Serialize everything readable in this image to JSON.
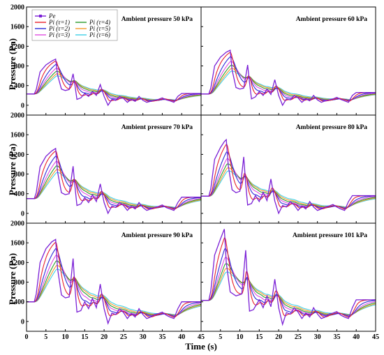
{
  "chart_data": {
    "type": "line",
    "xlabel": "Time (s)",
    "ylabel": "Pressure (Pa)",
    "xlim": [
      0,
      45
    ],
    "ylim": [
      -200,
      2000
    ],
    "xticks": [
      "0",
      "5",
      "10",
      "15",
      "20",
      "25",
      "30",
      "35",
      "40",
      "45"
    ],
    "yticks": [
      "0",
      "400",
      "800",
      "1200",
      "1600",
      "2000"
    ],
    "grid": false,
    "legend": {
      "placement": "top-left of first panel",
      "entries": [
        {
          "label": "Pe",
          "color": "#7a1fd6",
          "marker": "square"
        },
        {
          "label": "Pi (τ=1)",
          "color": "#e8202a",
          "marker": "none"
        },
        {
          "label": "Pi (τ=2)",
          "color": "#2a2ad8",
          "marker": "none"
        },
        {
          "label": "Pi (τ=3)",
          "color": "#e04de0",
          "marker": "none"
        },
        {
          "label": "Pi (τ=4)",
          "color": "#2a9a2a",
          "marker": "none"
        },
        {
          "label": "Pi (τ=5)",
          "color": "#f59a2b",
          "marker": "none"
        },
        {
          "label": "Pi (τ=6)",
          "color": "#3fd0e6",
          "marker": "none"
        }
      ]
    },
    "panels": [
      {
        "title": "Ambient pressure 50 kPa",
        "peak_pressure": 940,
        "peak_time": 7.5,
        "baseline": 230,
        "pe_points": [
          [
            0,
            230
          ],
          [
            2,
            230
          ],
          [
            2.5,
            320
          ],
          [
            3.5,
            680
          ],
          [
            5,
            820
          ],
          [
            6.5,
            900
          ],
          [
            7.5,
            940
          ],
          [
            8,
            620
          ],
          [
            9,
            330
          ],
          [
            10,
            300
          ],
          [
            11,
            320
          ],
          [
            12,
            640
          ],
          [
            12.5,
            400
          ],
          [
            13,
            120
          ],
          [
            14,
            150
          ],
          [
            15,
            240
          ],
          [
            16,
            180
          ],
          [
            17,
            280
          ],
          [
            18,
            200
          ],
          [
            19,
            420
          ],
          [
            20,
            180
          ],
          [
            21,
            0
          ],
          [
            22,
            120
          ],
          [
            23,
            100
          ],
          [
            24,
            180
          ],
          [
            25,
            140
          ],
          [
            26,
            60
          ],
          [
            27,
            120
          ],
          [
            28,
            80
          ],
          [
            29,
            180
          ],
          [
            30,
            100
          ],
          [
            31,
            60
          ],
          [
            32,
            80
          ],
          [
            33,
            100
          ],
          [
            34,
            120
          ],
          [
            35,
            150
          ],
          [
            36,
            110
          ],
          [
            37,
            90
          ],
          [
            38,
            60
          ],
          [
            39,
            180
          ],
          [
            40,
            240
          ],
          [
            45,
            240
          ]
        ]
      },
      {
        "title": "Ambient pressure 60 kPa",
        "peak_pressure": 1120,
        "peak_time": 7.5,
        "baseline": 230,
        "pe_points": [
          [
            0,
            230
          ],
          [
            2,
            230
          ],
          [
            2.5,
            350
          ],
          [
            3.5,
            800
          ],
          [
            5,
            980
          ],
          [
            6.5,
            1080
          ],
          [
            7.5,
            1120
          ],
          [
            8,
            720
          ],
          [
            9,
            360
          ],
          [
            10,
            330
          ],
          [
            11,
            350
          ],
          [
            12,
            820
          ],
          [
            12.5,
            460
          ],
          [
            13,
            130
          ],
          [
            14,
            170
          ],
          [
            15,
            280
          ],
          [
            16,
            200
          ],
          [
            17,
            330
          ],
          [
            18,
            220
          ],
          [
            19,
            520
          ],
          [
            20,
            200
          ],
          [
            21,
            0
          ],
          [
            22,
            130
          ],
          [
            23,
            110
          ],
          [
            24,
            200
          ],
          [
            25,
            150
          ],
          [
            26,
            60
          ],
          [
            27,
            130
          ],
          [
            28,
            90
          ],
          [
            29,
            200
          ],
          [
            30,
            110
          ],
          [
            31,
            60
          ],
          [
            32,
            90
          ],
          [
            33,
            110
          ],
          [
            34,
            130
          ],
          [
            35,
            160
          ],
          [
            36,
            120
          ],
          [
            37,
            90
          ],
          [
            38,
            60
          ],
          [
            39,
            200
          ],
          [
            40,
            260
          ],
          [
            45,
            260
          ]
        ]
      },
      {
        "title": "Ambient pressure 70 kPa",
        "peak_pressure": 1320,
        "peak_time": 7.5,
        "baseline": 300,
        "pe_points": [
          [
            0,
            300
          ],
          [
            2,
            300
          ],
          [
            2.5,
            420
          ],
          [
            3.5,
            950
          ],
          [
            5,
            1160
          ],
          [
            6.5,
            1270
          ],
          [
            7.5,
            1320
          ],
          [
            8,
            850
          ],
          [
            9,
            420
          ],
          [
            10,
            380
          ],
          [
            11,
            400
          ],
          [
            12,
            960
          ],
          [
            12.5,
            540
          ],
          [
            13,
            160
          ],
          [
            14,
            190
          ],
          [
            15,
            320
          ],
          [
            16,
            220
          ],
          [
            17,
            380
          ],
          [
            18,
            240
          ],
          [
            19,
            600
          ],
          [
            20,
            220
          ],
          [
            21,
            0
          ],
          [
            22,
            150
          ],
          [
            23,
            120
          ],
          [
            24,
            220
          ],
          [
            25,
            160
          ],
          [
            26,
            60
          ],
          [
            27,
            140
          ],
          [
            28,
            90
          ],
          [
            29,
            220
          ],
          [
            30,
            120
          ],
          [
            31,
            60
          ],
          [
            32,
            90
          ],
          [
            33,
            120
          ],
          [
            34,
            140
          ],
          [
            35,
            170
          ],
          [
            36,
            120
          ],
          [
            37,
            90
          ],
          [
            38,
            60
          ],
          [
            39,
            220
          ],
          [
            40,
            330
          ],
          [
            45,
            330
          ]
        ]
      },
      {
        "title": "Ambient pressure 80 kPa",
        "peak_pressure": 1500,
        "peak_time": 6.5,
        "baseline": 350,
        "pe_points": [
          [
            0,
            350
          ],
          [
            2,
            350
          ],
          [
            2.5,
            500
          ],
          [
            3.5,
            1100
          ],
          [
            5,
            1340
          ],
          [
            6,
            1460
          ],
          [
            6.5,
            1500
          ],
          [
            7,
            980
          ],
          [
            8,
            480
          ],
          [
            9,
            420
          ],
          [
            10,
            450
          ],
          [
            11,
            1150
          ],
          [
            11.5,
            600
          ],
          [
            12,
            170
          ],
          [
            13,
            200
          ],
          [
            14,
            360
          ],
          [
            15,
            240
          ],
          [
            16,
            430
          ],
          [
            17,
            260
          ],
          [
            18,
            700
          ],
          [
            19,
            250
          ],
          [
            20,
            0
          ],
          [
            21,
            160
          ],
          [
            22,
            130
          ],
          [
            23,
            240
          ],
          [
            24,
            170
          ],
          [
            25,
            60
          ],
          [
            26,
            150
          ],
          [
            27,
            90
          ],
          [
            28,
            240
          ],
          [
            29,
            130
          ],
          [
            30,
            60
          ],
          [
            31,
            90
          ],
          [
            32,
            130
          ],
          [
            33,
            150
          ],
          [
            34,
            180
          ],
          [
            35,
            130
          ],
          [
            36,
            90
          ],
          [
            37,
            60
          ],
          [
            38,
            240
          ],
          [
            39,
            360
          ],
          [
            45,
            360
          ]
        ]
      },
      {
        "title": "Ambient pressure 90 kPa",
        "peak_pressure": 1670,
        "peak_time": 7.5,
        "baseline": 400,
        "pe_points": [
          [
            0,
            400
          ],
          [
            2,
            400
          ],
          [
            2.5,
            560
          ],
          [
            3.5,
            1200
          ],
          [
            5,
            1480
          ],
          [
            6.5,
            1620
          ],
          [
            7.5,
            1670
          ],
          [
            8,
            1080
          ],
          [
            9,
            540
          ],
          [
            10,
            480
          ],
          [
            11,
            500
          ],
          [
            12,
            1280
          ],
          [
            12.5,
            680
          ],
          [
            13,
            190
          ],
          [
            14,
            220
          ],
          [
            15,
            400
          ],
          [
            16,
            260
          ],
          [
            17,
            470
          ],
          [
            18,
            280
          ],
          [
            19,
            760
          ],
          [
            20,
            260
          ],
          [
            21,
            -40
          ],
          [
            22,
            170
          ],
          [
            23,
            140
          ],
          [
            24,
            260
          ],
          [
            25,
            180
          ],
          [
            26,
            60
          ],
          [
            27,
            160
          ],
          [
            28,
            90
          ],
          [
            29,
            260
          ],
          [
            30,
            140
          ],
          [
            31,
            60
          ],
          [
            32,
            90
          ],
          [
            33,
            140
          ],
          [
            34,
            160
          ],
          [
            35,
            190
          ],
          [
            36,
            130
          ],
          [
            37,
            90
          ],
          [
            38,
            60
          ],
          [
            39,
            260
          ],
          [
            40,
            400
          ],
          [
            45,
            400
          ]
        ]
      },
      {
        "title": "Ambient pressure 101 kPa",
        "peak_pressure": 1880,
        "peak_time": 6,
        "baseline": 430,
        "pe_points": [
          [
            0,
            430
          ],
          [
            2,
            430
          ],
          [
            2.5,
            620
          ],
          [
            3.5,
            1350
          ],
          [
            5,
            1680
          ],
          [
            5.8,
            1840
          ],
          [
            6,
            1880
          ],
          [
            6.5,
            1200
          ],
          [
            7.5,
            600
          ],
          [
            9,
            520
          ],
          [
            10.5,
            560
          ],
          [
            11.5,
            1450
          ],
          [
            12,
            760
          ],
          [
            12.5,
            210
          ],
          [
            13.5,
            240
          ],
          [
            15,
            440
          ],
          [
            16,
            280
          ],
          [
            17,
            520
          ],
          [
            18,
            300
          ],
          [
            19,
            860
          ],
          [
            20,
            280
          ],
          [
            21,
            -60
          ],
          [
            22,
            180
          ],
          [
            23,
            150
          ],
          [
            24,
            280
          ],
          [
            25,
            190
          ],
          [
            26,
            60
          ],
          [
            27,
            170
          ],
          [
            28,
            90
          ],
          [
            29,
            280
          ],
          [
            30,
            150
          ],
          [
            31,
            60
          ],
          [
            32,
            90
          ],
          [
            33,
            150
          ],
          [
            34,
            170
          ],
          [
            35,
            200
          ],
          [
            36,
            130
          ],
          [
            37,
            90
          ],
          [
            38,
            60
          ],
          [
            39,
            280
          ],
          [
            40,
            440
          ],
          [
            45,
            440
          ]
        ]
      }
    ],
    "pi_lag_factors": [
      1,
      2,
      3,
      4,
      5,
      6
    ]
  }
}
